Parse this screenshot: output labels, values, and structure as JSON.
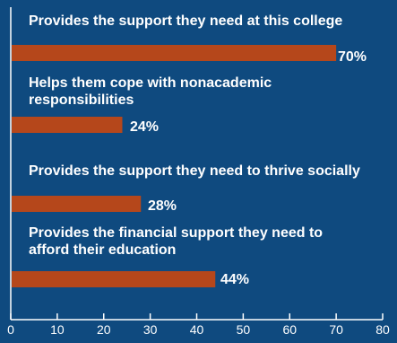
{
  "chart_data": {
    "type": "bar",
    "orientation": "horizontal",
    "categories": [
      "Provides the support they need at this college",
      "Helps them cope with nonacademic responsibilities",
      "Provides the support they need to thrive socially",
      "Provides the financial support they need to afford their education"
    ],
    "values": [
      70,
      24,
      28,
      44
    ],
    "value_labels": [
      "70%",
      "24%",
      "28%",
      "44%"
    ],
    "xlim": [
      0,
      80
    ],
    "x_ticks": [
      "0",
      "10",
      "20",
      "30",
      "40",
      "50",
      "60",
      "70",
      "80"
    ],
    "grid": false,
    "colors": {
      "background": "#0f4a7f",
      "bar": "#b5471b",
      "text": "#ffffff",
      "axis": "#ffffff"
    }
  }
}
